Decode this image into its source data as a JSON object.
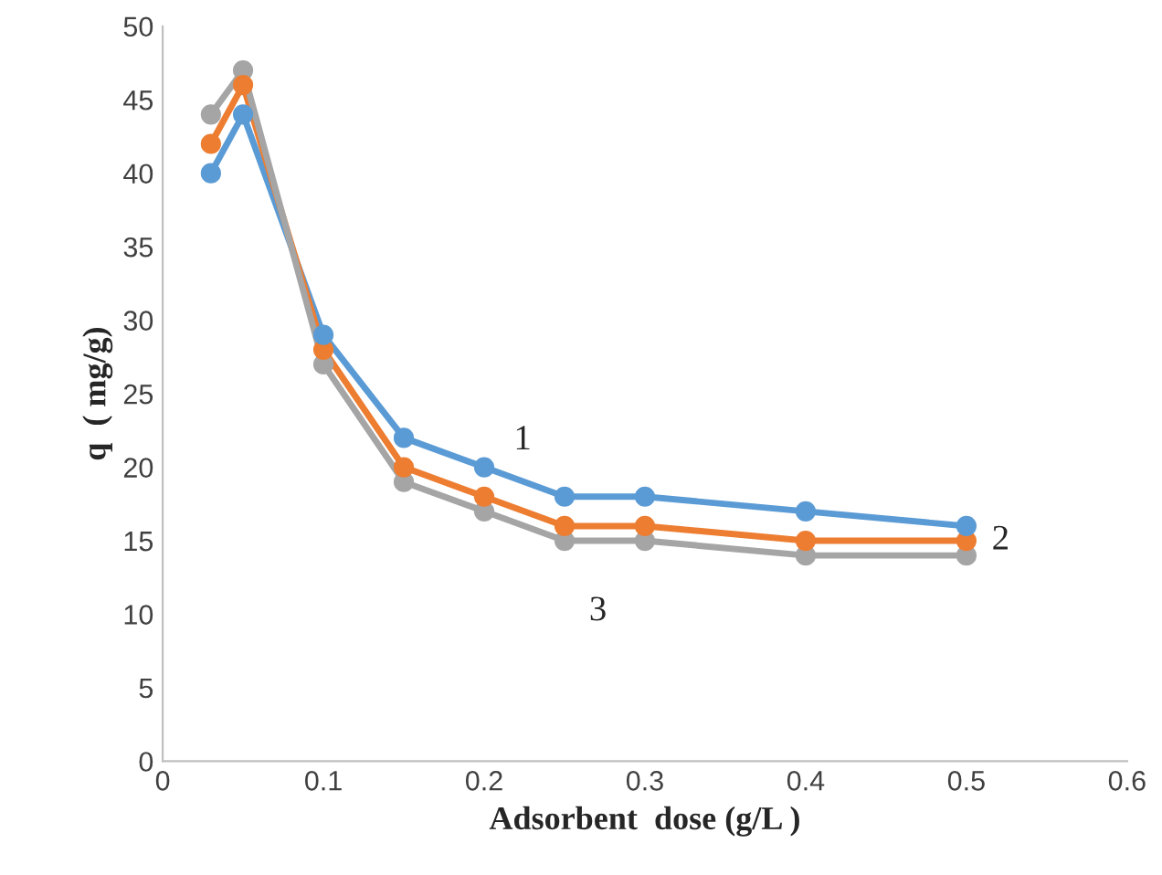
{
  "chart_data": {
    "type": "line",
    "xlabel": "Adsorbent  dose (g/L )",
    "ylabel": "q  ( mg/g)",
    "x": [
      0.03,
      0.05,
      0.1,
      0.15,
      0.2,
      0.25,
      0.3,
      0.4,
      0.5
    ],
    "series": [
      {
        "name": "1",
        "color": "#5b9bd5",
        "values": [
          40,
          44,
          29,
          22,
          20,
          18,
          18,
          17,
          16
        ]
      },
      {
        "name": "2",
        "color": "#ed7d31",
        "values": [
          42,
          46,
          28,
          20,
          18,
          16,
          16,
          15,
          15
        ]
      },
      {
        "name": "3",
        "color": "#a5a5a5",
        "values": [
          44,
          47,
          27,
          19,
          17,
          15,
          15,
          14,
          14
        ]
      }
    ],
    "xlim": [
      0,
      0.6
    ],
    "xticks": [
      {
        "value": 0,
        "label": "0"
      },
      0.1,
      0.2,
      0.3,
      0.4,
      0.5,
      0.6
    ],
    "ylim": [
      0,
      50
    ],
    "yticks": [
      0,
      5,
      10,
      15,
      20,
      25,
      30,
      35,
      40,
      45,
      50
    ],
    "grid": false,
    "marker": "circle",
    "line_style": "solid"
  }
}
